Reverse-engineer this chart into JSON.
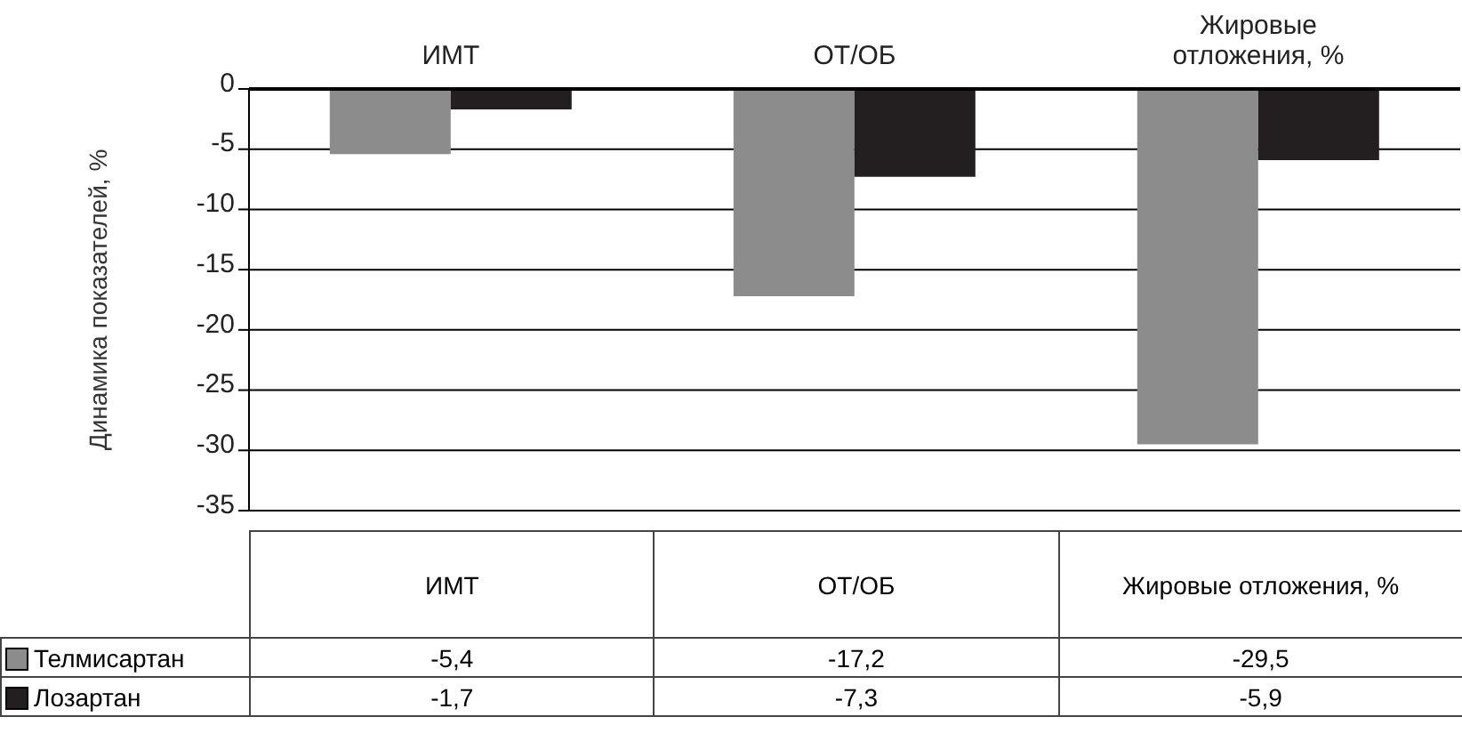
{
  "chart_data": {
    "type": "bar",
    "ylabel": "Динамика показателей, %",
    "categories": [
      "ИМТ",
      "ОТ/ОБ",
      "Жировые отложения, %"
    ],
    "series": [
      {
        "name": "Телмисартан",
        "color": "#8c8c8c",
        "values": [
          -5.4,
          -17.2,
          -29.5
        ],
        "value_labels": [
          "-5,4",
          "-17,2",
          "-29,5"
        ]
      },
      {
        "name": "Лозартан",
        "color": "#231f20",
        "values": [
          -1.7,
          -7.3,
          -5.9
        ],
        "value_labels": [
          "-1,7",
          "-7,3",
          "-5,9"
        ]
      }
    ],
    "ylim": [
      -35,
      0
    ],
    "yticks": [
      -35,
      -30,
      -25,
      -20,
      -15,
      -10,
      -5,
      0
    ],
    "grid": "y",
    "legend": "bottom"
  }
}
